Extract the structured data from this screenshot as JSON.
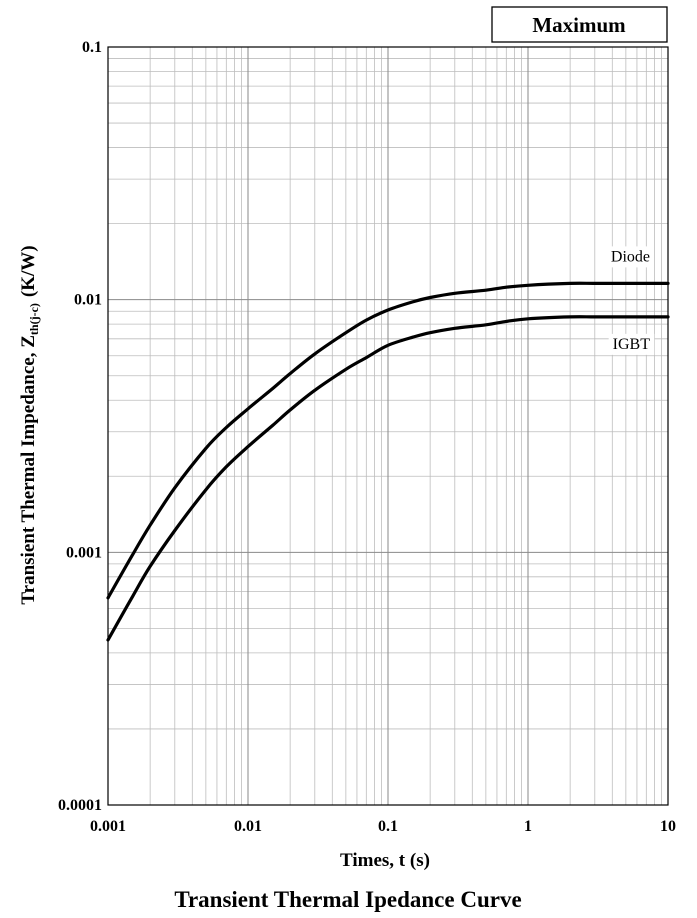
{
  "badge": "Maximum",
  "caption": "Transient Thermal Ipedance Curve",
  "chart_data": {
    "type": "line",
    "title": "",
    "xlabel": "Times, t (s)",
    "ylabel": {
      "main": "Transient Thermal Impedance, Z",
      "subscript": "th(j-c)",
      "unit": "(K/W)"
    },
    "x_scale": "log",
    "y_scale": "log",
    "xlim": [
      0.001,
      10
    ],
    "ylim": [
      0.0001,
      0.1
    ],
    "grid": true,
    "x_ticks": [
      0.001,
      0.01,
      0.1,
      1,
      10
    ],
    "x_tick_labels": [
      "0.001",
      "0.01",
      "0.1",
      "1",
      "10"
    ],
    "y_ticks": [
      0.0001,
      0.001,
      0.01,
      0.1
    ],
    "y_tick_labels": [
      "0.0001",
      "0.001",
      "0.01",
      "0.1"
    ],
    "series": [
      {
        "name": "Diode",
        "color": "#000000",
        "x": [
          0.001,
          0.0015,
          0.002,
          0.003,
          0.005,
          0.007,
          0.01,
          0.015,
          0.02,
          0.03,
          0.05,
          0.07,
          0.1,
          0.15,
          0.2,
          0.3,
          0.5,
          0.7,
          1,
          2,
          3,
          5,
          10
        ],
        "y": [
          0.00066,
          0.00098,
          0.00128,
          0.0018,
          0.00258,
          0.00312,
          0.0037,
          0.00445,
          0.0051,
          0.0061,
          0.0074,
          0.0083,
          0.0091,
          0.0098,
          0.0102,
          0.0106,
          0.0109,
          0.0112,
          0.0114,
          0.0116,
          0.0116,
          0.0116,
          0.0116
        ]
      },
      {
        "name": "IGBT",
        "color": "#000000",
        "x": [
          0.001,
          0.0015,
          0.002,
          0.003,
          0.005,
          0.007,
          0.01,
          0.015,
          0.02,
          0.03,
          0.05,
          0.07,
          0.1,
          0.15,
          0.2,
          0.3,
          0.5,
          0.7,
          1,
          2,
          3,
          5,
          10
        ],
        "y": [
          0.00045,
          0.00067,
          0.00088,
          0.00122,
          0.00177,
          0.00218,
          0.00262,
          0.00318,
          0.00366,
          0.00438,
          0.0053,
          0.0059,
          0.0066,
          0.0071,
          0.0074,
          0.0077,
          0.00795,
          0.0082,
          0.0084,
          0.00855,
          0.00855,
          0.00855,
          0.00855
        ]
      }
    ]
  }
}
